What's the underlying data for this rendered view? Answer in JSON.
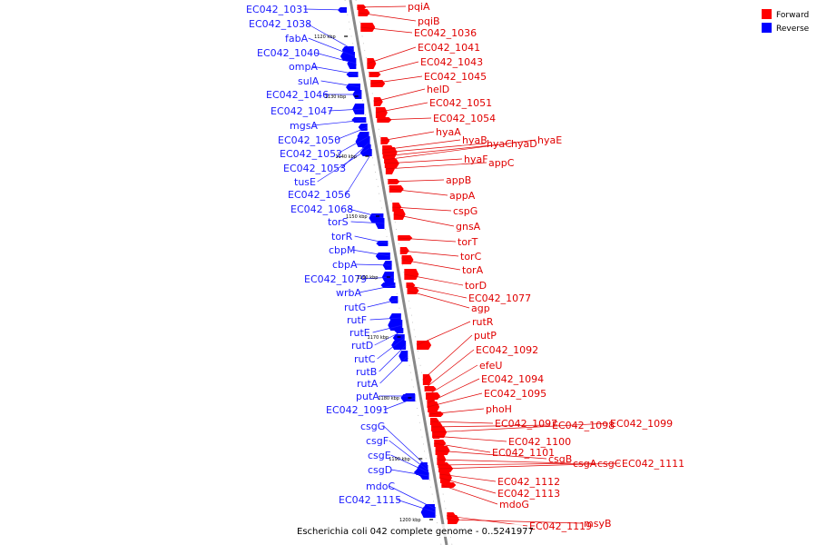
{
  "caption": "Escherichia coli 042 complete genome - 0..5241977",
  "legend": [
    {
      "label": "Forward",
      "color": "#ff0000"
    },
    {
      "label": "Reverse",
      "color": "#0000ff"
    }
  ],
  "colors": {
    "forward": "#ff0000",
    "reverse": "#0000ff",
    "backbone": "#888888"
  },
  "ticks": [
    "1120 kbp",
    "1130 kbp",
    "1140 kbp",
    "1150 kbp",
    "1160 kbp",
    "1170 kbp",
    "1180 kbp",
    "1190 kbp",
    "1200 kbp"
  ],
  "reverse_genes": [
    "EC042_1031",
    "EC042_1038",
    "fabA",
    "EC042_1040",
    "ompA",
    "sulA",
    "EC042_1046",
    "EC042_1047",
    "mgsA",
    "EC042_1050",
    "EC042_1052",
    "EC042_1053",
    "tusE",
    "EC042_1056",
    "EC042_1068",
    "torS",
    "torR",
    "cbpM",
    "cbpA",
    "EC042_1079",
    "wrbA",
    "rutG",
    "rutF",
    "rutE",
    "rutD",
    "rutC",
    "rutB",
    "rutA",
    "putA",
    "EC042_1091",
    "csgG",
    "csgF",
    "csgE",
    "csgD",
    "mdoC",
    "EC042_1115"
  ],
  "forward_genes": [
    "pqiA",
    "pqiB",
    "EC042_1036",
    "EC042_1041",
    "EC042_1043",
    "EC042_1045",
    "helD",
    "EC042_1051",
    "EC042_1054",
    "hyaA",
    "hyaB",
    "hyaC",
    "hyaD",
    "hyaE",
    "hyaF",
    "appC",
    "appB",
    "appA",
    "cspG",
    "gnsA",
    "torT",
    "torC",
    "torA",
    "torD",
    "EC042_1077",
    "agp",
    "rutR",
    "putP",
    "EC042_1092",
    "efeU",
    "EC042_1094",
    "EC042_1095",
    "phoH",
    "EC042_1097",
    "EC042_1098",
    "EC042_1099",
    "EC042_1100",
    "EC042_1101",
    "csgB",
    "csgA",
    "csgC",
    "EC042_1111",
    "EC042_1112",
    "EC042_1113",
    "mdoG",
    "EC042_1119",
    "msyB"
  ]
}
